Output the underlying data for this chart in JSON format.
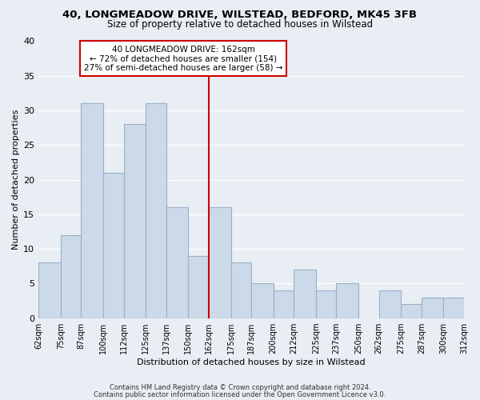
{
  "title": "40, LONGMEADOW DRIVE, WILSTEAD, BEDFORD, MK45 3FB",
  "subtitle": "Size of property relative to detached houses in Wilstead",
  "xlabel": "Distribution of detached houses by size in Wilstead",
  "ylabel": "Number of detached properties",
  "bar_color": "#ccd9e8",
  "bar_edge_color": "#9ab0c8",
  "bin_edges": [
    62,
    75,
    87,
    100,
    112,
    125,
    137,
    150,
    162,
    175,
    187,
    200,
    212,
    225,
    237,
    250,
    262,
    275,
    287,
    300,
    312
  ],
  "bin_labels": [
    "62sqm",
    "75sqm",
    "87sqm",
    "100sqm",
    "112sqm",
    "125sqm",
    "137sqm",
    "150sqm",
    "162sqm",
    "175sqm",
    "187sqm",
    "200sqm",
    "212sqm",
    "225sqm",
    "237sqm",
    "250sqm",
    "262sqm",
    "275sqm",
    "287sqm",
    "300sqm",
    "312sqm"
  ],
  "counts": [
    8,
    12,
    31,
    21,
    28,
    31,
    16,
    9,
    16,
    8,
    5,
    4,
    7,
    4,
    5,
    0,
    4,
    2,
    3,
    3
  ],
  "vline_color": "#cc0000",
  "vline_x": 162,
  "ylim": [
    0,
    40
  ],
  "yticks": [
    0,
    5,
    10,
    15,
    20,
    25,
    30,
    35,
    40
  ],
  "annotation_line1": "40 LONGMEADOW DRIVE: 162sqm",
  "annotation_line2": "← 72% of detached houses are smaller (154)",
  "annotation_line3": "27% of semi-detached houses are larger (58) →",
  "footer1": "Contains HM Land Registry data © Crown copyright and database right 2024.",
  "footer2": "Contains public sector information licensed under the Open Government Licence v3.0.",
  "background_color": "#e8eef4",
  "plot_bg_color": "#e8eef4",
  "grid_color": "#ffffff",
  "box_edge_color": "#cc0000",
  "title_fontsize": 9.5,
  "subtitle_fontsize": 8.5,
  "label_fontsize": 8,
  "tick_fontsize": 7,
  "footer_fontsize": 6,
  "annot_fontsize": 7.5
}
